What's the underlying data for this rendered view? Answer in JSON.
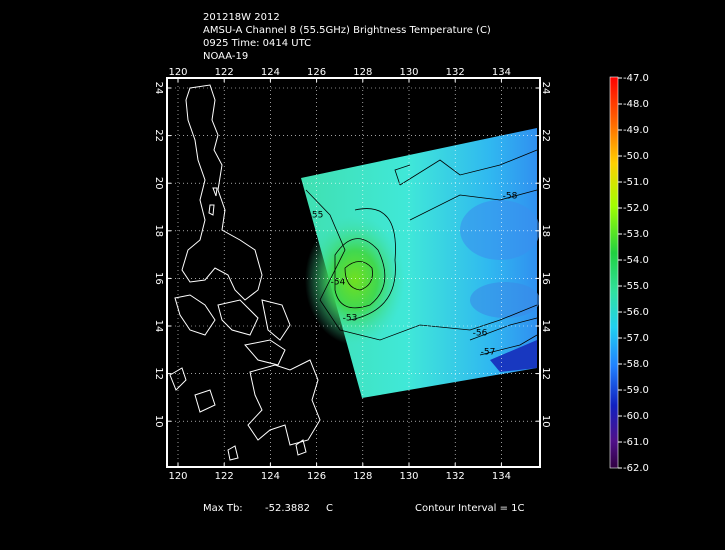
{
  "header": {
    "lines": [
      "201218W 2012",
      "AMSU-A Channel 8 (55.5GHz) Brightness Temperature (C)",
      "0925 Time: 0414 UTC",
      "NOAA-19"
    ]
  },
  "map": {
    "lon_ticks": [
      120,
      122,
      124,
      126,
      128,
      130,
      132,
      134
    ],
    "lat_ticks": [
      24,
      22,
      20,
      18,
      16,
      14,
      12,
      10
    ],
    "contour_labels": [
      "-58",
      "-56",
      "-57",
      "-55",
      "-54",
      "-53"
    ]
  },
  "colorbar": {
    "labels": [
      "-47.0",
      "-48.0",
      "-49.0",
      "-50.0",
      "-51.0",
      "-52.0",
      "-53.0",
      "-54.0",
      "-55.0",
      "-56.0",
      "-57.0",
      "-58.0",
      "-59.0",
      "-60.0",
      "-61.0",
      "-62.0"
    ]
  },
  "footer": {
    "max_label": "Max Tb:",
    "max_value": "-52.3882",
    "max_unit": "C",
    "contour_interval": "Contour Interval = 1C"
  }
}
